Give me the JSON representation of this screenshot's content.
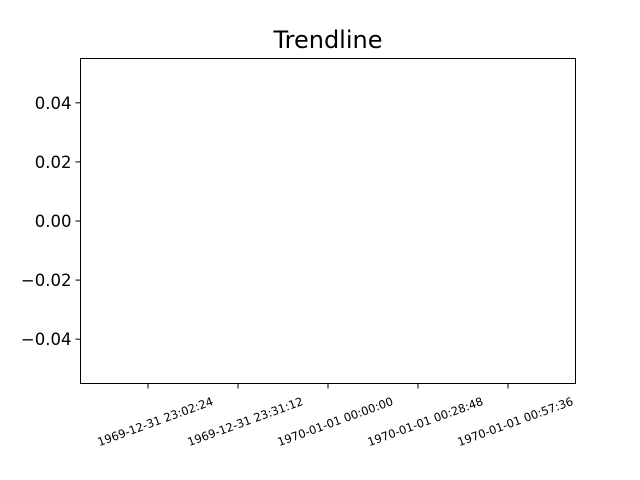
{
  "chart_data": {
    "type": "line",
    "title": "Trendline",
    "xlabel": "",
    "ylabel": "",
    "series": [],
    "x_ticks": [
      "1969-12-31 23:02:24",
      "1969-12-31 23:31:12",
      "1970-01-01 00:00:00",
      "1970-01-01 00:28:48",
      "1970-01-01 00:57:36"
    ],
    "y_ticks": [
      "0.04",
      "0.02",
      "0.00",
      "−0.02",
      "−0.04"
    ],
    "y_tick_values": [
      0.04,
      0.02,
      0.0,
      -0.02,
      -0.04
    ],
    "ylim": [
      -0.055,
      0.055
    ],
    "grid": false,
    "legend": "none"
  }
}
